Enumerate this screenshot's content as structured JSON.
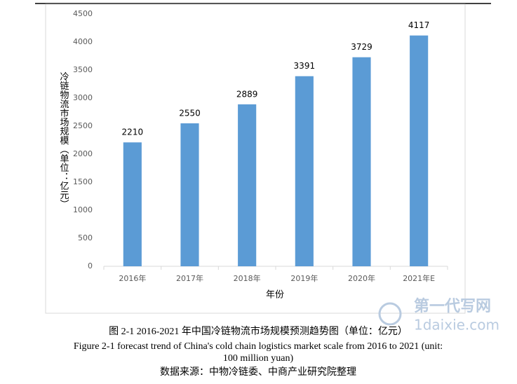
{
  "chart_data": {
    "type": "bar",
    "y_label": "冷链物流市场规模（单位：亿元）",
    "x_label": "年份",
    "categories": [
      "2016年",
      "2017年",
      "2018年",
      "2019年",
      "2020年",
      "2021年E"
    ],
    "values": [
      2210,
      2550,
      2889,
      3391,
      3729,
      4117
    ],
    "color": "#5b9bd5",
    "ylim": [
      0,
      4500
    ],
    "yticks": [
      0,
      500,
      1000,
      1500,
      2000,
      2500,
      3000,
      3500,
      4000,
      4500
    ],
    "grid": false
  },
  "caption": {
    "zh": "图 2-1 2016-2021 年中国冷链物流市场规模预测趋势图（单位：亿元）",
    "en_lines": [
      "Figure 2-1 forecast trend of China's cold chain logistics market scale from 2016 to 2021 (unit:",
      "100 million yuan)"
    ],
    "source": "数据来源：中物冷链委、中商产业研究院整理"
  },
  "watermark": {
    "name": "第一代写网",
    "site": "1daixie.com"
  }
}
